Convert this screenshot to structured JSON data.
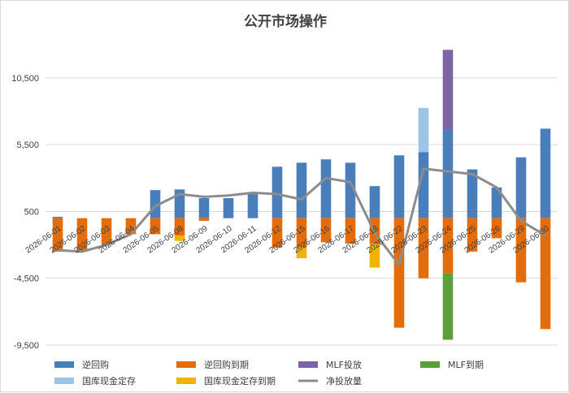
{
  "chart_data": {
    "type": "bar",
    "title": "公开市场操作",
    "xlabel": "",
    "ylabel": "",
    "ylim": [
      -9500,
      12500
    ],
    "yticks": [
      -9500,
      -4500,
      500,
      5500,
      10500
    ],
    "ytick_labels": [
      "-9,500",
      "-4,500",
      "500",
      "5,500",
      "10,500"
    ],
    "grid": true,
    "legend_position": "bottom",
    "categories": [
      "2026-06-01",
      "2026-06-02",
      "2026-06-03",
      "2026-06-04",
      "2026-06-05",
      "2026-06-08",
      "2026-06-09",
      "2026-06-10",
      "2026-06-11",
      "2026-06-12",
      "2026-06-15",
      "2026-06-16",
      "2026-06-17",
      "2026-06-18",
      "2026-06-22",
      "2026-06-23",
      "2026-06-24",
      "2026-06-25",
      "2026-06-26",
      "2026-06-29",
      "2026-06-30"
    ],
    "series": [
      {
        "name": "逆回购",
        "kind": "bar",
        "color": "#4a7ebb",
        "values": [
          100,
          0,
          0,
          0,
          2100,
          2150,
          1500,
          1500,
          1800,
          3850,
          4150,
          4400,
          4150,
          2400,
          4700,
          4950,
          6600,
          3650,
          2300,
          4550,
          6700
        ]
      },
      {
        "name": "逆回购到期",
        "kind": "bar",
        "color": "#e46c0a",
        "values": [
          -2500,
          -2500,
          -2000,
          -1200,
          -1200,
          -1300,
          -200,
          0,
          0,
          -2200,
          -2200,
          -1800,
          -1900,
          -1900,
          -8200,
          -4500,
          -4100,
          -2500,
          -1500,
          -4800,
          -8300
        ]
      },
      {
        "name": "MLF投放",
        "kind": "bar",
        "color": "#7f64a4",
        "values": [
          0,
          0,
          0,
          0,
          0,
          0,
          0,
          0,
          0,
          0,
          0,
          0,
          0,
          0,
          0,
          0,
          6000,
          0,
          0,
          0,
          0
        ]
      },
      {
        "name": "MLF到期",
        "kind": "bar",
        "color": "#5c9e3a",
        "values": [
          0,
          0,
          0,
          0,
          0,
          0,
          0,
          0,
          0,
          0,
          0,
          0,
          0,
          0,
          0,
          0,
          -5000,
          0,
          0,
          0,
          0
        ]
      },
      {
        "name": "国库现金定存",
        "kind": "bar",
        "color": "#9dc3e6",
        "values": [
          0,
          0,
          0,
          0,
          0,
          0,
          0,
          0,
          0,
          0,
          0,
          0,
          0,
          0,
          0,
          3300,
          0,
          0,
          0,
          0,
          0
        ]
      },
      {
        "name": "国库现金定存到期",
        "kind": "bar",
        "color": "#f0b400",
        "values": [
          0,
          0,
          0,
          0,
          0,
          -400,
          0,
          0,
          0,
          0,
          -800,
          0,
          0,
          -1800,
          0,
          0,
          0,
          0,
          0,
          0,
          0
        ]
      },
      {
        "name": "净投放量",
        "kind": "line",
        "color": "#8c8c8c",
        "values": [
          -2400,
          -2500,
          -2000,
          -1200,
          900,
          1800,
          1600,
          1700,
          1900,
          1800,
          1400,
          3000,
          2700,
          -1100,
          -3500,
          3700,
          3500,
          3300,
          2300,
          -200,
          -1300
        ]
      }
    ]
  }
}
